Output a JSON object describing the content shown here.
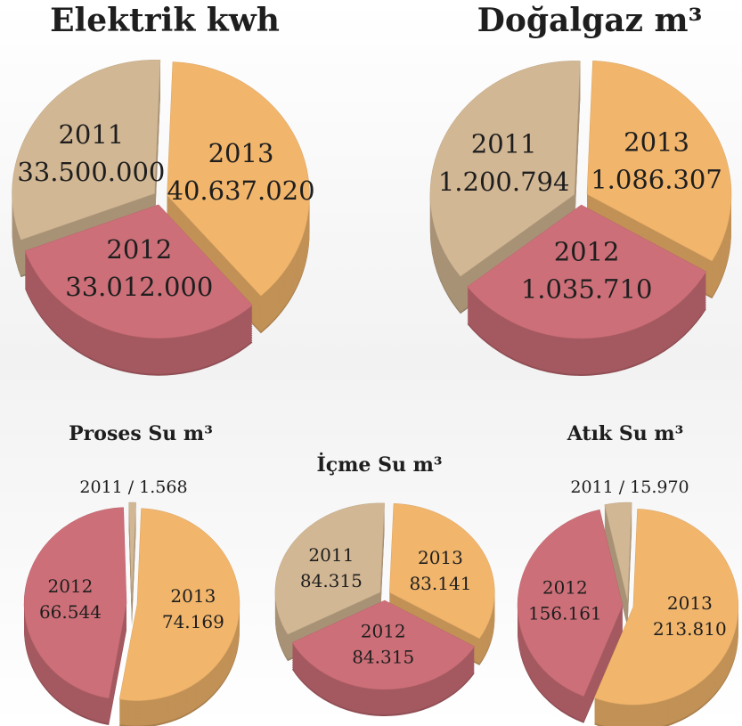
{
  "chart_data": [
    {
      "type": "pie",
      "title": "Elektrik kwh",
      "categories": [
        "2011",
        "2012",
        "2013"
      ],
      "values": [
        33500000,
        33012000,
        40637020
      ],
      "value_labels": [
        "33.500.000",
        "33.012.000",
        "40.637.020"
      ],
      "colors": [
        "#d2b794",
        "#cd6f78",
        "#f1b56c"
      ]
    },
    {
      "type": "pie",
      "title": "Doğalgaz m³",
      "categories": [
        "2011",
        "2012",
        "2013"
      ],
      "values": [
        1200794,
        1035710,
        1086307
      ],
      "value_labels": [
        "1.200.794",
        "1.035.710",
        "1.086.307"
      ],
      "colors": [
        "#d2b794",
        "#cd6f78",
        "#f1b56c"
      ]
    },
    {
      "type": "pie",
      "title": "Proses Su m³",
      "categories": [
        "2011",
        "2012",
        "2013"
      ],
      "values": [
        1568,
        66544,
        74169
      ],
      "value_labels": [
        "1.568",
        "66.544",
        "74.169"
      ],
      "label_separator": "/",
      "colors": [
        "#d2b794",
        "#cd6f78",
        "#f1b56c"
      ]
    },
    {
      "type": "pie",
      "title": "İçme Su m³",
      "categories": [
        "2011",
        "2012",
        "2013"
      ],
      "values": [
        84315,
        84315,
        83141
      ],
      "value_labels": [
        "84.315",
        "84.315",
        "83.141"
      ],
      "colors": [
        "#d2b794",
        "#cd6f78",
        "#f1b56c"
      ]
    },
    {
      "type": "pie",
      "title": "Atık Su m³",
      "categories": [
        "2011",
        "2012",
        "2013"
      ],
      "values": [
        15970,
        156161,
        213810
      ],
      "value_labels": [
        "15.970",
        "156.161",
        "213.810"
      ],
      "label_separator": "/",
      "colors": [
        "#d2b794",
        "#cd6f78",
        "#f1b56c"
      ]
    }
  ]
}
